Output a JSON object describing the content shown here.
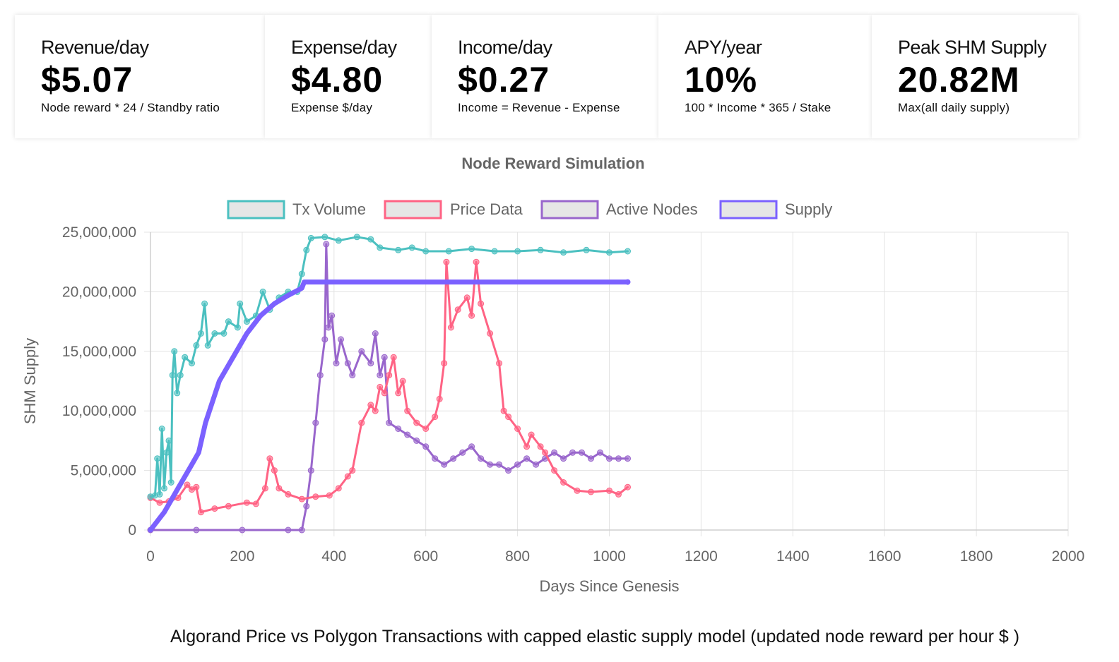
{
  "cards": [
    {
      "label": "Revenue/day",
      "value": "$5.07",
      "sub": "Node reward * 24 / Standby ratio"
    },
    {
      "label": "Expense/day",
      "value": "$4.80",
      "sub": "Expense $/day"
    },
    {
      "label": "Income/day",
      "value": "$0.27",
      "sub": "Income = Revenue - Expense"
    },
    {
      "label": "APY/year",
      "value": "10%",
      "sub": "100 * Income * 365 / Stake"
    },
    {
      "label": "Peak SHM Supply",
      "value": "20.82M",
      "sub": "Max(all daily supply)"
    }
  ],
  "caption": "Algorand Price vs Polygon Transactions with capped elastic supply model (updated node reward per hour $ )",
  "chart_data": {
    "type": "line",
    "title": "Node Reward Simulation",
    "xlabel": "Days Since Genesis",
    "ylabel": "SHM Supply",
    "xlim": [
      0,
      2000
    ],
    "ylim": [
      0,
      25000000
    ],
    "x_ticks": [
      "0",
      "200",
      "400",
      "600",
      "800",
      "1000",
      "1200",
      "1400",
      "1600",
      "1800",
      "2000"
    ],
    "y_ticks": [
      "0",
      "5,000,000",
      "10,000,000",
      "15,000,000",
      "20,000,000",
      "25,000,000"
    ],
    "grid": true,
    "legend_position": "top",
    "series": [
      {
        "name": "Tx Volume",
        "color": "#4bc0c0",
        "points": [
          [
            0,
            2800000
          ],
          [
            10,
            2900000
          ],
          [
            15,
            6000000
          ],
          [
            20,
            3000000
          ],
          [
            25,
            8500000
          ],
          [
            30,
            3500000
          ],
          [
            35,
            6500000
          ],
          [
            40,
            7500000
          ],
          [
            45,
            4000000
          ],
          [
            48,
            13000000
          ],
          [
            52,
            15000000
          ],
          [
            58,
            11500000
          ],
          [
            65,
            13000000
          ],
          [
            75,
            14500000
          ],
          [
            90,
            14000000
          ],
          [
            100,
            15500000
          ],
          [
            110,
            16500000
          ],
          [
            118,
            19000000
          ],
          [
            125,
            15500000
          ],
          [
            140,
            16500000
          ],
          [
            160,
            16500000
          ],
          [
            170,
            17500000
          ],
          [
            190,
            17000000
          ],
          [
            195,
            19000000
          ],
          [
            210,
            17500000
          ],
          [
            230,
            18000000
          ],
          [
            245,
            20000000
          ],
          [
            260,
            18500000
          ],
          [
            280,
            19500000
          ],
          [
            300,
            20000000
          ],
          [
            320,
            20000000
          ],
          [
            330,
            21500000
          ],
          [
            340,
            23500000
          ],
          [
            350,
            24500000
          ],
          [
            380,
            24600000
          ],
          [
            410,
            24300000
          ],
          [
            450,
            24600000
          ],
          [
            480,
            24400000
          ],
          [
            500,
            23700000
          ],
          [
            540,
            23500000
          ],
          [
            570,
            23700000
          ],
          [
            600,
            23400000
          ],
          [
            650,
            23400000
          ],
          [
            700,
            23600000
          ],
          [
            750,
            23400000
          ],
          [
            800,
            23400000
          ],
          [
            850,
            23500000
          ],
          [
            900,
            23300000
          ],
          [
            950,
            23500000
          ],
          [
            1000,
            23300000
          ],
          [
            1040,
            23400000
          ]
        ]
      },
      {
        "name": "Price Data",
        "color": "#ff6384",
        "points": [
          [
            0,
            2700000
          ],
          [
            20,
            2300000
          ],
          [
            40,
            2400000
          ],
          [
            60,
            2700000
          ],
          [
            80,
            3800000
          ],
          [
            90,
            3400000
          ],
          [
            100,
            3600000
          ],
          [
            110,
            1500000
          ],
          [
            140,
            1800000
          ],
          [
            170,
            2000000
          ],
          [
            210,
            2300000
          ],
          [
            230,
            2200000
          ],
          [
            250,
            3500000
          ],
          [
            260,
            6000000
          ],
          [
            270,
            5000000
          ],
          [
            280,
            3500000
          ],
          [
            300,
            3000000
          ],
          [
            330,
            2600000
          ],
          [
            360,
            2800000
          ],
          [
            390,
            2900000
          ],
          [
            410,
            3500000
          ],
          [
            430,
            4500000
          ],
          [
            440,
            5000000
          ],
          [
            460,
            9000000
          ],
          [
            480,
            10500000
          ],
          [
            490,
            10000000
          ],
          [
            500,
            12000000
          ],
          [
            510,
            11500000
          ],
          [
            520,
            13000000
          ],
          [
            530,
            14500000
          ],
          [
            540,
            11500000
          ],
          [
            550,
            12500000
          ],
          [
            560,
            10000000
          ],
          [
            580,
            9000000
          ],
          [
            600,
            8500000
          ],
          [
            620,
            9500000
          ],
          [
            630,
            11000000
          ],
          [
            640,
            14000000
          ],
          [
            645,
            22500000
          ],
          [
            655,
            17000000
          ],
          [
            670,
            18500000
          ],
          [
            690,
            19500000
          ],
          [
            700,
            18000000
          ],
          [
            710,
            22500000
          ],
          [
            720,
            19000000
          ],
          [
            740,
            16500000
          ],
          [
            760,
            14000000
          ],
          [
            770,
            10000000
          ],
          [
            780,
            9500000
          ],
          [
            800,
            8500000
          ],
          [
            820,
            7000000
          ],
          [
            830,
            8000000
          ],
          [
            850,
            7000000
          ],
          [
            860,
            6500000
          ],
          [
            880,
            5000000
          ],
          [
            900,
            4000000
          ],
          [
            930,
            3300000
          ],
          [
            960,
            3200000
          ],
          [
            1000,
            3300000
          ],
          [
            1020,
            3000000
          ],
          [
            1040,
            3600000
          ]
        ]
      },
      {
        "name": "Active Nodes",
        "color": "#9966cc",
        "points": [
          [
            0,
            0
          ],
          [
            100,
            0
          ],
          [
            200,
            0
          ],
          [
            300,
            0
          ],
          [
            330,
            0
          ],
          [
            340,
            2000000
          ],
          [
            350,
            5000000
          ],
          [
            360,
            9000000
          ],
          [
            370,
            13000000
          ],
          [
            380,
            16000000
          ],
          [
            383,
            24000000
          ],
          [
            388,
            17000000
          ],
          [
            395,
            18000000
          ],
          [
            405,
            14000000
          ],
          [
            415,
            16000000
          ],
          [
            430,
            14000000
          ],
          [
            440,
            13000000
          ],
          [
            460,
            15000000
          ],
          [
            480,
            14000000
          ],
          [
            490,
            16500000
          ],
          [
            500,
            13000000
          ],
          [
            510,
            14500000
          ],
          [
            520,
            9000000
          ],
          [
            540,
            8500000
          ],
          [
            560,
            8000000
          ],
          [
            580,
            7500000
          ],
          [
            600,
            7000000
          ],
          [
            620,
            6000000
          ],
          [
            640,
            5500000
          ],
          [
            660,
            6000000
          ],
          [
            680,
            6500000
          ],
          [
            700,
            7000000
          ],
          [
            720,
            6000000
          ],
          [
            740,
            5500000
          ],
          [
            760,
            5500000
          ],
          [
            780,
            5000000
          ],
          [
            800,
            5500000
          ],
          [
            820,
            6000000
          ],
          [
            840,
            5500000
          ],
          [
            860,
            6000000
          ],
          [
            880,
            6500000
          ],
          [
            900,
            6000000
          ],
          [
            920,
            6500000
          ],
          [
            940,
            6500000
          ],
          [
            960,
            6000000
          ],
          [
            980,
            6500000
          ],
          [
            1000,
            6000000
          ],
          [
            1020,
            6000000
          ],
          [
            1040,
            6000000
          ]
        ]
      },
      {
        "name": "Supply",
        "color": "#7b61ff",
        "points": [
          [
            0,
            0
          ],
          [
            30,
            1500000
          ],
          [
            60,
            3500000
          ],
          [
            90,
            5500000
          ],
          [
            105,
            6500000
          ],
          [
            120,
            9000000
          ],
          [
            150,
            12500000
          ],
          [
            180,
            14500000
          ],
          [
            210,
            16500000
          ],
          [
            240,
            18000000
          ],
          [
            270,
            19000000
          ],
          [
            300,
            19700000
          ],
          [
            330,
            20300000
          ],
          [
            335,
            20820000
          ],
          [
            400,
            20820000
          ],
          [
            600,
            20820000
          ],
          [
            800,
            20820000
          ],
          [
            1040,
            20820000
          ]
        ]
      }
    ]
  }
}
